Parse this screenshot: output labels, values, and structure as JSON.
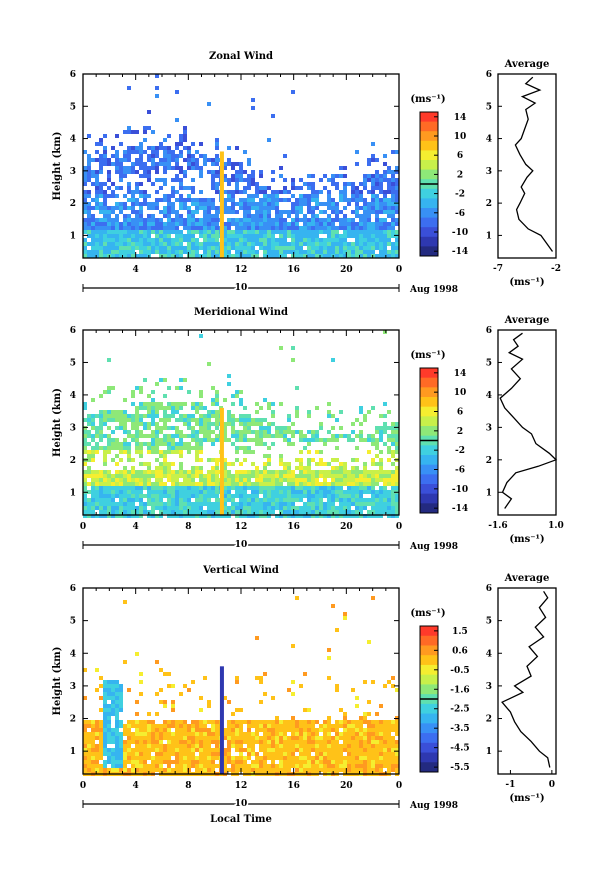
{
  "panels": [
    {
      "title": "Zonal Wind",
      "ylabel": "Height (km)",
      "colorbar_unit": "(ms⁻¹)",
      "colorbar_ticks": [
        "14",
        "10",
        "6",
        "2",
        "-2",
        "-6",
        "-10",
        "-14"
      ],
      "date_label": "10",
      "date_suffix": "Aug 1998",
      "avg_title": "Average",
      "avg_xticks": [
        "-7",
        "-2"
      ],
      "avg_unit": "(ms⁻¹)"
    },
    {
      "title": "Meridional Wind",
      "ylabel": "Height (km)",
      "colorbar_unit": "(ms⁻¹)",
      "colorbar_ticks": [
        "14",
        "10",
        "6",
        "2",
        "-2",
        "-6",
        "-10",
        "-14"
      ],
      "date_label": "10",
      "date_suffix": "Aug 1998",
      "avg_title": "Average",
      "avg_xticks": [
        "-1.6",
        "1.0"
      ],
      "avg_unit": "(ms⁻¹)"
    },
    {
      "title": "Vertical Wind",
      "ylabel": "Height (km)",
      "colorbar_unit": "(ms⁻¹)",
      "colorbar_ticks": [
        "1.5",
        "0.6",
        "-0.5",
        "-1.6",
        "-2.5",
        "-3.5",
        "-4.5",
        "-5.5"
      ],
      "date_label": "10",
      "date_suffix": "Aug 1998",
      "avg_title": "Average",
      "avg_xticks": [
        "-1",
        "0"
      ],
      "avg_unit": "(ms⁻¹)",
      "xlabel": "Local Time"
    }
  ],
  "chart_data": [
    {
      "type": "heatmap",
      "title": "Zonal Wind",
      "ylabel": "Height (km)",
      "xlim": [
        0,
        24
      ],
      "ylim": [
        0.3,
        6
      ],
      "x_ticks": [
        "0",
        "4",
        "8",
        "12",
        "16",
        "20",
        "0"
      ],
      "y_ticks": [
        "1",
        "2",
        "3",
        "4",
        "5",
        "6"
      ],
      "colorbar_ticks": [
        14,
        10,
        6,
        2,
        -2,
        -6,
        -10,
        -14
      ],
      "profile": {
        "title": "Average",
        "xlim": [
          -7,
          -2
        ],
        "x_ticks": [
          "-7",
          "-2"
        ],
        "height": [
          0.5,
          0.8,
          1.0,
          1.2,
          1.5,
          1.8,
          2.0,
          2.3,
          2.5,
          2.8,
          3.0,
          3.2,
          3.5,
          3.8,
          4.0,
          4.3,
          4.6,
          4.9,
          5.1,
          5.3,
          5.5,
          5.7,
          5.9
        ],
        "value": [
          -2.3,
          -2.9,
          -3.3,
          -4.4,
          -5.2,
          -5.4,
          -5.1,
          -4.7,
          -5.0,
          -4.5,
          -4.0,
          -4.6,
          -5.1,
          -5.5,
          -5.0,
          -4.7,
          -4.4,
          -4.6,
          -3.8,
          -4.9,
          -3.4,
          -4.6,
          -4.0
        ]
      }
    },
    {
      "type": "heatmap",
      "title": "Meridional Wind",
      "ylabel": "Height (km)",
      "xlim": [
        0,
        24
      ],
      "ylim": [
        0.3,
        6
      ],
      "x_ticks": [
        "0",
        "4",
        "8",
        "12",
        "16",
        "20",
        "0"
      ],
      "y_ticks": [
        "1",
        "2",
        "3",
        "4",
        "5",
        "6"
      ],
      "colorbar_ticks": [
        14,
        10,
        6,
        2,
        -2,
        -6,
        -10,
        -14
      ],
      "profile": {
        "title": "Average",
        "xlim": [
          -1.6,
          1.0
        ],
        "x_ticks": [
          "-1.6",
          "1.0"
        ],
        "height": [
          0.5,
          0.8,
          1.0,
          1.3,
          1.6,
          1.8,
          2.0,
          2.2,
          2.5,
          2.8,
          3.0,
          3.3,
          3.6,
          3.9,
          4.2,
          4.5,
          4.8,
          5.1,
          5.3,
          5.5,
          5.7,
          5.9
        ],
        "value": [
          -1.3,
          -1.0,
          -1.4,
          -1.2,
          -0.8,
          0.2,
          1.0,
          0.7,
          0.1,
          -0.1,
          -0.5,
          -0.9,
          -1.3,
          -1.5,
          -1.0,
          -0.6,
          -1.0,
          -0.5,
          -1.1,
          -0.7,
          -0.9,
          -0.5
        ]
      }
    },
    {
      "type": "heatmap",
      "title": "Vertical Wind",
      "ylabel": "Height (km)",
      "xlabel": "Local Time",
      "xlim": [
        0,
        24
      ],
      "ylim": [
        0.3,
        6
      ],
      "x_ticks": [
        "0",
        "4",
        "8",
        "12",
        "16",
        "20",
        "0"
      ],
      "y_ticks": [
        "1",
        "2",
        "3",
        "4",
        "5",
        "6"
      ],
      "colorbar_ticks": [
        1.5,
        0.6,
        -0.5,
        -1.6,
        -2.5,
        -3.5,
        -4.5,
        -5.5
      ],
      "profile": {
        "title": "Average",
        "xlim": [
          -1.3,
          0.1
        ],
        "x_ticks": [
          "-1",
          "0"
        ],
        "height": [
          0.5,
          0.8,
          1.0,
          1.3,
          1.6,
          1.9,
          2.2,
          2.5,
          2.8,
          3.0,
          3.3,
          3.6,
          3.9,
          4.2,
          4.5,
          4.8,
          5.1,
          5.4,
          5.7,
          5.9
        ],
        "value": [
          -0.05,
          -0.1,
          -0.3,
          -0.5,
          -0.75,
          -0.9,
          -1.0,
          -1.2,
          -0.7,
          -0.9,
          -0.5,
          -0.6,
          -0.35,
          -0.55,
          -0.2,
          -0.4,
          -0.15,
          -0.3,
          -0.1,
          -0.2
        ]
      }
    }
  ]
}
